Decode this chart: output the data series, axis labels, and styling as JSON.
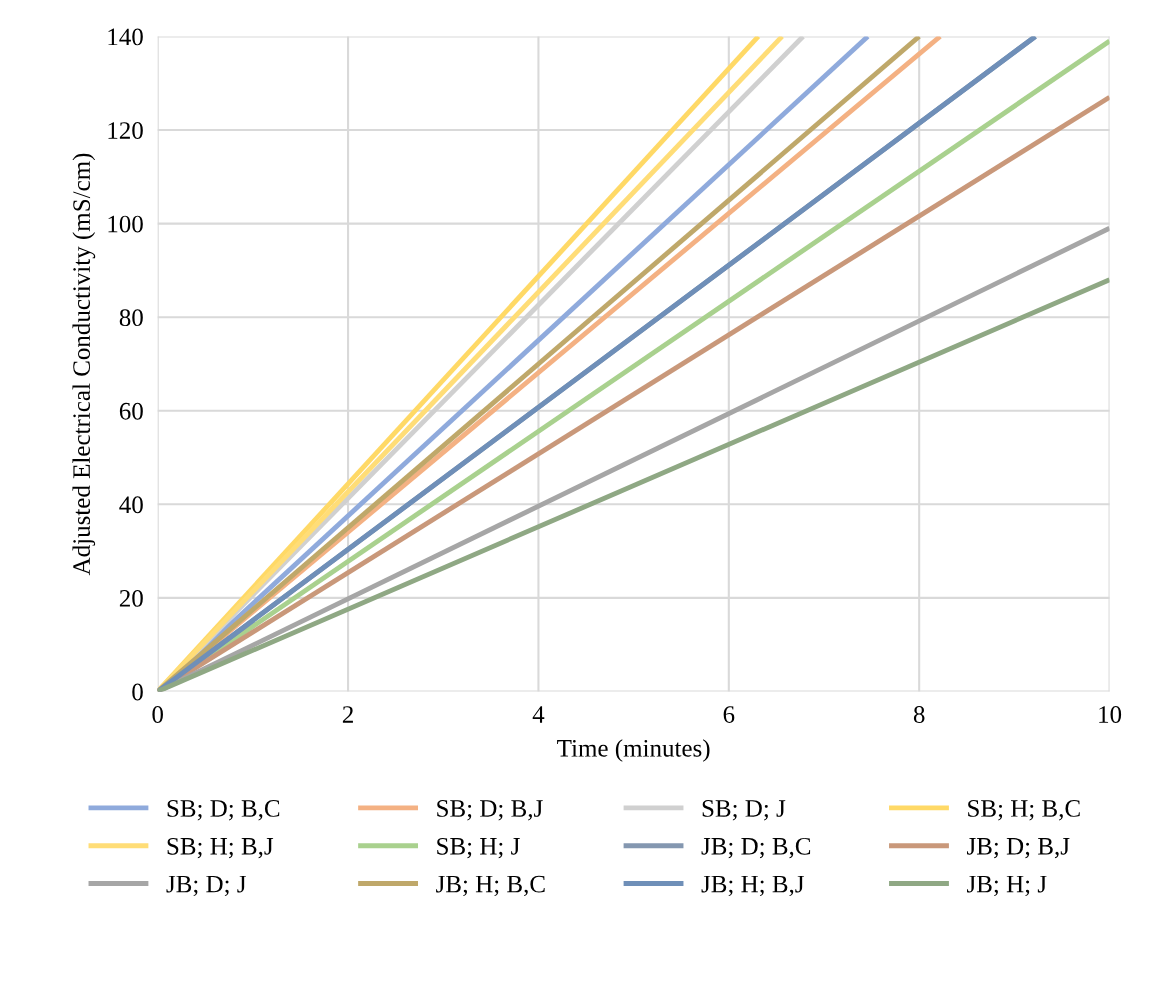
{
  "chart_data": {
    "type": "line",
    "xlabel": "Time (minutes)",
    "ylabel": "Adjusted Electrical Conductivity (mS/cm)",
    "xlim": [
      0,
      10
    ],
    "ylim": [
      0,
      140
    ],
    "xticks": [
      0,
      2,
      4,
      6,
      8,
      10
    ],
    "yticks": [
      0,
      20,
      40,
      60,
      80,
      100,
      120,
      140
    ],
    "grid": true,
    "legend": "bottom",
    "marker": "none",
    "line_style": "solid",
    "series": [
      {
        "name": "SB; D; B,C",
        "color": "#8faadc",
        "x": [
          0,
          7.46
        ],
        "values": [
          0,
          140
        ]
      },
      {
        "name": "SB; D; B,J",
        "color": "#f4b183",
        "x": [
          0,
          8.22
        ],
        "values": [
          0,
          140
        ]
      },
      {
        "name": "SB; D; J",
        "color": "#d0d0d0",
        "x": [
          0,
          6.78
        ],
        "values": [
          0,
          140
        ]
      },
      {
        "name": "SB; H; B,C",
        "color": "#ffd966",
        "x": [
          0,
          6.31
        ],
        "values": [
          0,
          140
        ]
      },
      {
        "name": "SB; H; B,J",
        "color": "#ffdd77",
        "x": [
          0,
          6.56
        ],
        "values": [
          0,
          140
        ]
      },
      {
        "name": "SB; H; J",
        "color": "#a9d18e",
        "x": [
          0,
          10
        ],
        "values": [
          0,
          139
        ]
      },
      {
        "name": "JB; D; B,C",
        "color": "#8497b0",
        "x": [
          0,
          9.22
        ],
        "values": [
          0,
          140
        ]
      },
      {
        "name": "JB; D; B,J",
        "color": "#c9987a",
        "x": [
          0,
          10
        ],
        "values": [
          0,
          127
        ]
      },
      {
        "name": "JB; D; J",
        "color": "#a6a6a6",
        "x": [
          0,
          10
        ],
        "values": [
          0,
          99
        ]
      },
      {
        "name": "JB; H; B,C",
        "color": "#bfa86a",
        "x": [
          0,
          8.0
        ],
        "values": [
          0,
          140
        ]
      },
      {
        "name": "JB; H; B,J",
        "color": "#6f8fb8",
        "x": [
          0,
          9.22
        ],
        "values": [
          0,
          140
        ]
      },
      {
        "name": "JB; H; J",
        "color": "#8fa884",
        "x": [
          0,
          10
        ],
        "values": [
          0,
          88
        ]
      }
    ]
  }
}
